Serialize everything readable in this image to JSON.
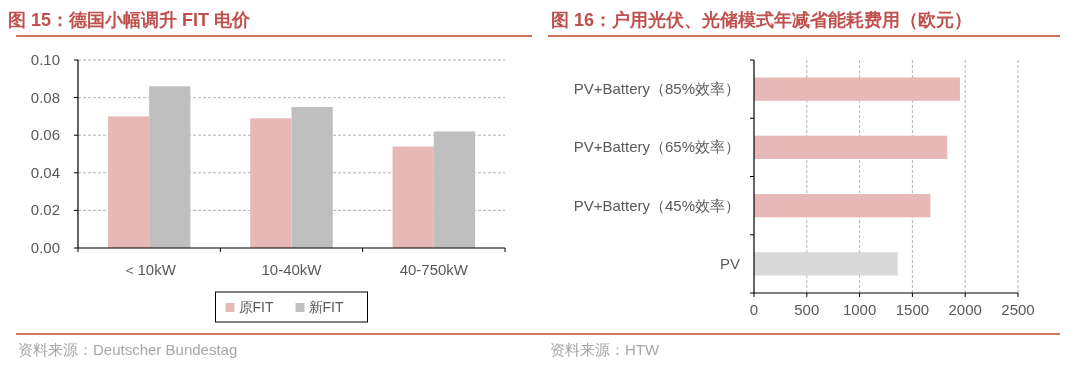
{
  "chart_data": [
    {
      "type": "bar",
      "title": "图 15：德国小幅调升 FIT 电价",
      "categories": [
        "＜10kW",
        "10-40kW",
        "40-750kW"
      ],
      "series": [
        {
          "name": "原FIT",
          "color": "#e6b8b7",
          "values": [
            0.07,
            0.069,
            0.054
          ]
        },
        {
          "name": "新FIT",
          "color": "#bfbfbf",
          "values": [
            0.086,
            0.075,
            0.062
          ]
        }
      ],
      "ylim": [
        0,
        0.1
      ],
      "yticks": [
        {
          "value": 0,
          "label": "0.00"
        },
        {
          "value": 0.02,
          "label": "0.02"
        },
        {
          "value": 0.04,
          "label": "0.04"
        },
        {
          "value": 0.06,
          "label": "0.06"
        },
        {
          "value": 0.08,
          "label": "0.08"
        },
        {
          "value": 0.1,
          "label": "0.10"
        }
      ],
      "grid": "y",
      "legend": "bottom",
      "annotations": [
        "资料来源：Deutscher Bundestag"
      ]
    },
    {
      "type": "bar",
      "orientation": "horizontal",
      "title": "图 16：户用光伏、光储模式年减省能耗费用（欧元）",
      "categories": [
        "PV+Battery（85%效率）",
        "PV+Battery（65%效率）",
        "PV+Battery（45%效率）",
        "PV"
      ],
      "values": [
        1950,
        1830,
        1670,
        1360
      ],
      "colors": [
        "#e6b8b7",
        "#e6b8b7",
        "#e6b8b7",
        "#d9d9d9"
      ],
      "xlim": [
        0,
        2500
      ],
      "xticks": [
        0,
        500,
        1000,
        1500,
        2000,
        2500
      ],
      "grid": "x",
      "annotations": [
        "资料来源：HTW"
      ]
    }
  ]
}
